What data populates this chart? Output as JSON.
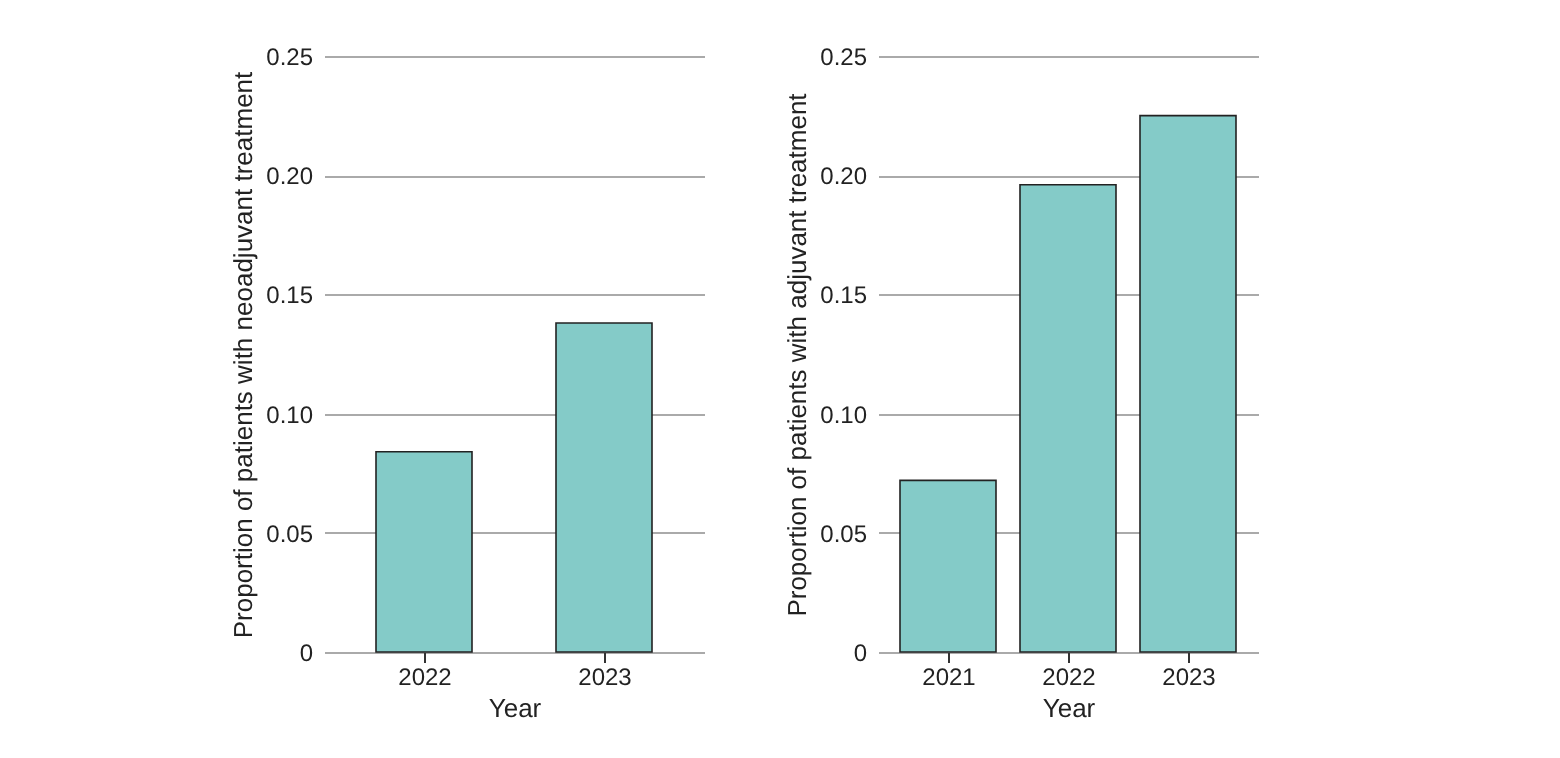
{
  "chart_data": [
    {
      "type": "bar",
      "categories": [
        "2022",
        "2023"
      ],
      "values": [
        0.084,
        0.138
      ],
      "color": "#84cbc8",
      "xlabel": "Year",
      "ylabel": "Proportion of patients with neoadjuvant treatment",
      "ylim": [
        0,
        0.25
      ],
      "yticks": [
        {
          "value": 0,
          "label": "0"
        },
        0.05,
        {
          "value": 0.1,
          "label": "0.10"
        },
        0.15,
        {
          "value": 0.2,
          "label": "0.20"
        },
        0.25
      ],
      "grid": "y"
    },
    {
      "type": "bar",
      "categories": [
        "2021",
        "2022",
        "2023"
      ],
      "values": [
        0.072,
        0.196,
        0.225
      ],
      "color": "#84cbc8",
      "xlabel": "Year",
      "ylabel": "Proportion of patients with adjuvant treatment",
      "ylim": [
        0,
        0.25
      ],
      "yticks": [
        {
          "value": 0,
          "label": "0"
        },
        0.05,
        {
          "value": 0.1,
          "label": "0.10"
        },
        0.15,
        {
          "value": 0.2,
          "label": "0.20"
        },
        0.25
      ],
      "grid": "y"
    }
  ]
}
